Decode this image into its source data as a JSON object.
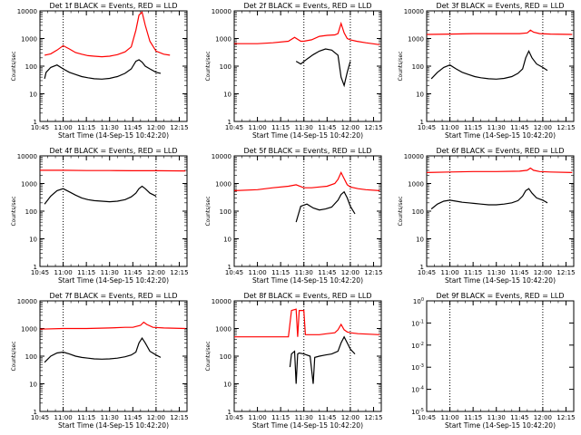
{
  "chart_data": [
    {
      "type": "line",
      "title": "Det 1f BLACK = Events, RED = LLD",
      "xlabel": "Start Time (14-Sep-15 10:42:20)",
      "ylabel": "Counts/sec",
      "y_scale": "log",
      "ylim": [
        1,
        10000
      ],
      "ytick_labels": [
        "1",
        "10",
        "100",
        "1000",
        "10000"
      ],
      "xlim": [
        "10:45",
        "12:20"
      ],
      "xtick_labels": [
        "10:45",
        "11:00",
        "11:15",
        "11:30",
        "11:45",
        "12:00",
        "12:15"
      ],
      "vlines_dotted": [
        "11:00",
        "12:00"
      ],
      "series": [
        {
          "color": "#ff0000",
          "x": [
            "10:48",
            "10:52",
            "10:56",
            "11:00",
            "11:04",
            "11:08",
            "11:12",
            "11:16",
            "11:20",
            "11:25",
            "11:30",
            "11:35",
            "11:40",
            "11:44",
            "11:47",
            "11:49",
            "11:51",
            "11:53",
            "11:56",
            "12:00",
            "12:05",
            "12:09"
          ],
          "values": [
            250,
            280,
            380,
            550,
            420,
            310,
            270,
            240,
            230,
            220,
            230,
            260,
            330,
            500,
            2000,
            7000,
            9000,
            3000,
            800,
            350,
            270,
            250
          ]
        },
        {
          "color": "#000000",
          "x": [
            "10:48",
            "10:49",
            "10:52",
            "10:56",
            "11:00",
            "11:04",
            "11:08",
            "11:12",
            "11:16",
            "11:20",
            "11:25",
            "11:30",
            "11:35",
            "11:40",
            "11:44",
            "11:47",
            "11:49",
            "11:51",
            "11:53",
            "11:56",
            "12:00",
            "12:03"
          ],
          "values": [
            35,
            60,
            90,
            110,
            80,
            60,
            50,
            42,
            38,
            35,
            34,
            36,
            42,
            55,
            80,
            150,
            170,
            140,
            100,
            80,
            60,
            55
          ]
        }
      ]
    },
    {
      "type": "line",
      "title": "Det 2f BLACK = Events, RED = LLD",
      "xlabel": "Start Time (14-Sep-15 10:42:20)",
      "ylabel": "Counts/sec",
      "y_scale": "log",
      "ylim": [
        1,
        10000
      ],
      "ytick_labels": [
        "1",
        "10",
        "100",
        "1000",
        "10000"
      ],
      "xlim": [
        "10:45",
        "12:20"
      ],
      "xtick_labels": [
        "10:45",
        "11:00",
        "11:15",
        "11:30",
        "11:45",
        "12:00",
        "12:15"
      ],
      "vlines_dotted": [
        "11:30",
        "12:00"
      ],
      "series": [
        {
          "color": "#ff0000",
          "x": [
            "10:45",
            "11:00",
            "11:10",
            "11:20",
            "11:24",
            "11:28",
            "11:30",
            "11:35",
            "11:40",
            "11:45",
            "11:50",
            "11:52",
            "11:54",
            "11:56",
            "11:58",
            "12:00",
            "12:04",
            "12:10",
            "12:19"
          ],
          "values": [
            650,
            650,
            700,
            800,
            1100,
            800,
            800,
            900,
            1200,
            1300,
            1350,
            1500,
            3500,
            1600,
            1000,
            900,
            800,
            700,
            600
          ]
        },
        {
          "color": "#000000",
          "x": [
            "11:25",
            "11:28",
            "11:32",
            "11:36",
            "11:40",
            "11:44",
            "11:48",
            "11:52",
            "11:54",
            "11:56",
            "11:58",
            "12:00"
          ],
          "values": [
            150,
            120,
            180,
            260,
            350,
            420,
            380,
            250,
            40,
            20,
            60,
            150
          ]
        }
      ]
    },
    {
      "type": "line",
      "title": "Det 3f BLACK = Events, RED = LLD",
      "xlabel": "Start Time (14-Sep-15 10:42:20)",
      "ylabel": "Counts/sec",
      "y_scale": "log",
      "ylim": [
        1,
        10000
      ],
      "ytick_labels": [
        "1",
        "10",
        "100",
        "1000",
        "10000"
      ],
      "xlim": [
        "10:45",
        "12:20"
      ],
      "xtick_labels": [
        "10:45",
        "11:00",
        "11:15",
        "11:30",
        "11:45",
        "12:00",
        "12:15"
      ],
      "vlines_dotted": [
        "11:00",
        "12:00"
      ],
      "series": [
        {
          "color": "#ff0000",
          "x": [
            "10:45",
            "11:00",
            "11:15",
            "11:30",
            "11:45",
            "11:50",
            "11:52",
            "11:54",
            "11:58",
            "12:05",
            "12:19"
          ],
          "values": [
            1400,
            1450,
            1500,
            1500,
            1500,
            1600,
            2000,
            1700,
            1500,
            1450,
            1400
          ]
        },
        {
          "color": "#000000",
          "x": [
            "10:48",
            "10:52",
            "10:56",
            "11:00",
            "11:04",
            "11:08",
            "11:12",
            "11:16",
            "11:20",
            "11:25",
            "11:30",
            "11:35",
            "11:40",
            "11:44",
            "11:47",
            "11:49",
            "11:51",
            "11:53",
            "11:56",
            "12:00",
            "12:03"
          ],
          "values": [
            35,
            60,
            90,
            110,
            80,
            60,
            50,
            42,
            38,
            35,
            34,
            36,
            42,
            55,
            80,
            200,
            350,
            200,
            120,
            90,
            70
          ]
        }
      ]
    },
    {
      "type": "line",
      "title": "Det 4f BLACK = Events, RED = LLD",
      "xlabel": "Start Time (14-Sep-15 10:42:20)",
      "ylabel": "Counts/sec",
      "y_scale": "log",
      "ylim": [
        1,
        10000
      ],
      "ytick_labels": [
        "1",
        "10",
        "100",
        "1000",
        "10000"
      ],
      "xlim": [
        "10:45",
        "12:20"
      ],
      "xtick_labels": [
        "10:45",
        "11:00",
        "11:15",
        "11:30",
        "11:45",
        "12:00",
        "12:15"
      ],
      "vlines_dotted": [
        "11:00",
        "12:00"
      ],
      "series": [
        {
          "color": "#ff0000",
          "x": [
            "10:45",
            "11:00",
            "11:15",
            "11:30",
            "11:45",
            "12:00",
            "12:19"
          ],
          "values": [
            3000,
            3000,
            2950,
            2950,
            2900,
            2900,
            2850
          ]
        },
        {
          "color": "#000000",
          "x": [
            "10:48",
            "10:52",
            "10:56",
            "11:00",
            "11:04",
            "11:08",
            "11:12",
            "11:16",
            "11:20",
            "11:25",
            "11:30",
            "11:35",
            "11:40",
            "11:44",
            "11:47",
            "11:49",
            "11:51",
            "11:53",
            "11:56",
            "12:00"
          ],
          "values": [
            180,
            350,
            550,
            650,
            500,
            380,
            300,
            260,
            240,
            230,
            220,
            230,
            260,
            330,
            450,
            650,
            800,
            650,
            450,
            350
          ]
        }
      ]
    },
    {
      "type": "line",
      "title": "Det 5f BLACK = Events, RED = LLD",
      "xlabel": "Start Time (14-Sep-15 10:42:20)",
      "ylabel": "Counts/sec",
      "y_scale": "log",
      "ylim": [
        1,
        10000
      ],
      "ytick_labels": [
        "1",
        "10",
        "100",
        "1000",
        "10000"
      ],
      "xlim": [
        "10:45",
        "12:20"
      ],
      "xtick_labels": [
        "10:45",
        "11:00",
        "11:15",
        "11:30",
        "11:45",
        "12:00",
        "12:15"
      ],
      "vlines_dotted": [
        "11:30",
        "12:00"
      ],
      "series": [
        {
          "color": "#ff0000",
          "x": [
            "10:45",
            "11:00",
            "11:10",
            "11:20",
            "11:25",
            "11:30",
            "11:35",
            "11:40",
            "11:45",
            "11:50",
            "11:52",
            "11:54",
            "11:56",
            "11:58",
            "12:00",
            "12:05",
            "12:10",
            "12:19"
          ],
          "values": [
            550,
            600,
            700,
            800,
            900,
            700,
            700,
            750,
            800,
            1000,
            1400,
            2500,
            1500,
            900,
            750,
            650,
            600,
            550
          ]
        },
        {
          "color": "#000000",
          "x": [
            "11:25",
            "11:28",
            "11:32",
            "11:36",
            "11:40",
            "11:44",
            "11:48",
            "11:52",
            "11:54",
            "11:56",
            "11:58",
            "12:00",
            "12:03"
          ],
          "values": [
            40,
            150,
            180,
            130,
            110,
            120,
            140,
            250,
            400,
            500,
            300,
            150,
            80
          ]
        }
      ]
    },
    {
      "type": "line",
      "title": "Det 6f BLACK = Events, RED = LLD",
      "xlabel": "Start Time (14-Sep-15 10:42:20)",
      "ylabel": "Counts/sec",
      "y_scale": "log",
      "ylim": [
        1,
        10000
      ],
      "ytick_labels": [
        "1",
        "10",
        "100",
        "1000",
        "10000"
      ],
      "xlim": [
        "10:45",
        "12:20"
      ],
      "xtick_labels": [
        "10:45",
        "11:00",
        "11:15",
        "11:30",
        "11:45",
        "12:00",
        "12:15"
      ],
      "vlines_dotted": [
        "11:00",
        "12:00"
      ],
      "series": [
        {
          "color": "#ff0000",
          "x": [
            "10:45",
            "11:00",
            "11:15",
            "11:30",
            "11:45",
            "11:50",
            "11:52",
            "11:54",
            "11:58",
            "12:05",
            "12:19"
          ],
          "values": [
            2500,
            2600,
            2700,
            2700,
            2800,
            3000,
            3600,
            3000,
            2700,
            2600,
            2500
          ]
        },
        {
          "color": "#000000",
          "x": [
            "10:48",
            "10:52",
            "10:56",
            "11:00",
            "11:04",
            "11:08",
            "11:12",
            "11:16",
            "11:20",
            "11:25",
            "11:30",
            "11:35",
            "11:40",
            "11:44",
            "11:47",
            "11:49",
            "11:51",
            "11:53",
            "11:56",
            "12:00",
            "12:03"
          ],
          "values": [
            120,
            180,
            230,
            250,
            230,
            210,
            200,
            190,
            180,
            170,
            170,
            180,
            200,
            240,
            350,
            550,
            650,
            450,
            300,
            250,
            200
          ]
        }
      ]
    },
    {
      "type": "line",
      "title": "Det 7f BLACK = Events, RED = LLD",
      "xlabel": "Start Time (14-Sep-15 10:42:20)",
      "ylabel": "Counts/sec",
      "y_scale": "log",
      "ylim": [
        1,
        10000
      ],
      "ytick_labels": [
        "1",
        "10",
        "100",
        "1000",
        "10000"
      ],
      "xlim": [
        "10:45",
        "12:20"
      ],
      "xtick_labels": [
        "10:45",
        "11:00",
        "11:15",
        "11:30",
        "11:45",
        "12:00",
        "12:15"
      ],
      "vlines_dotted": [
        "11:00",
        "12:00"
      ],
      "series": [
        {
          "color": "#ff0000",
          "x": [
            "10:45",
            "11:00",
            "11:15",
            "11:30",
            "11:40",
            "11:45",
            "11:50",
            "11:52",
            "11:54",
            "11:58",
            "12:05",
            "12:19"
          ],
          "values": [
            950,
            1000,
            1000,
            1050,
            1100,
            1100,
            1300,
            1700,
            1400,
            1100,
            1050,
            1000
          ]
        },
        {
          "color": "#000000",
          "x": [
            "10:48",
            "10:52",
            "10:56",
            "11:00",
            "11:04",
            "11:08",
            "11:12",
            "11:16",
            "11:20",
            "11:25",
            "11:30",
            "11:35",
            "11:40",
            "11:44",
            "11:47",
            "11:49",
            "11:51",
            "11:53",
            "11:56",
            "12:00",
            "12:03"
          ],
          "values": [
            60,
            100,
            130,
            140,
            120,
            100,
            90,
            85,
            80,
            78,
            80,
            85,
            95,
            110,
            140,
            300,
            450,
            300,
            150,
            110,
            90
          ]
        }
      ]
    },
    {
      "type": "line",
      "title": "Det 8f BLACK = Events, RED = LLD",
      "xlabel": "Start Time (14-Sep-15 10:42:20)",
      "ylabel": "Counts/sec",
      "y_scale": "log",
      "ylim": [
        1,
        10000
      ],
      "ytick_labels": [
        "1",
        "10",
        "100",
        "1000",
        "10000"
      ],
      "xlim": [
        "10:45",
        "12:20"
      ],
      "xtick_labels": [
        "10:45",
        "11:00",
        "11:15",
        "11:30",
        "11:45",
        "12:00",
        "12:15"
      ],
      "vlines_dotted": [
        "11:30",
        "12:00"
      ],
      "series": [
        {
          "color": "#ff0000",
          "x": [
            "10:45",
            "11:00",
            "11:10",
            "11:20",
            "11:22",
            "11:25",
            "11:26",
            "11:27",
            "11:30",
            "11:31",
            "11:36",
            "11:37",
            "11:40",
            "11:45",
            "11:50",
            "11:52",
            "11:54",
            "11:56",
            "11:58",
            "12:00",
            "12:05",
            "12:19"
          ],
          "values": [
            500,
            500,
            500,
            500,
            4500,
            5000,
            500,
            4500,
            4500,
            600,
            600,
            600,
            600,
            650,
            700,
            900,
            1400,
            900,
            750,
            700,
            650,
            600
          ]
        },
        {
          "color": "#000000",
          "x": [
            "11:21",
            "11:22",
            "11:24",
            "11:25",
            "11:26",
            "11:27",
            "11:30",
            "11:34",
            "11:36",
            "11:37",
            "11:40",
            "11:44",
            "11:48",
            "11:52",
            "11:54",
            "11:56",
            "11:58",
            "12:00",
            "12:03"
          ],
          "values": [
            40,
            120,
            150,
            10,
            120,
            130,
            120,
            100,
            10,
            90,
            100,
            110,
            120,
            150,
            300,
            500,
            300,
            180,
            120
          ]
        }
      ]
    },
    {
      "type": "line",
      "title": "Det 9f BLACK = Events, RED = LLD",
      "xlabel": "Start Time (14-Sep-15 10:42:20)",
      "ylabel": "",
      "y_scale": "log",
      "ytick_labels": [
        "10<sup>0</sup>",
        "10<sup>-1</sup>",
        "10<sup>-2</sup>",
        "10<sup>-3</sup>",
        "10<sup>-4</sup>",
        "10<sup>-5</sup>"
      ],
      "xlim": [
        "10:45",
        "12:20"
      ],
      "xtick_labels": [
        "10:45",
        "11:00",
        "11:15",
        "11:30",
        "11:45",
        "12:00",
        "12:15"
      ],
      "vlines_dotted": [
        "11:00",
        "12:00"
      ],
      "series": []
    }
  ]
}
